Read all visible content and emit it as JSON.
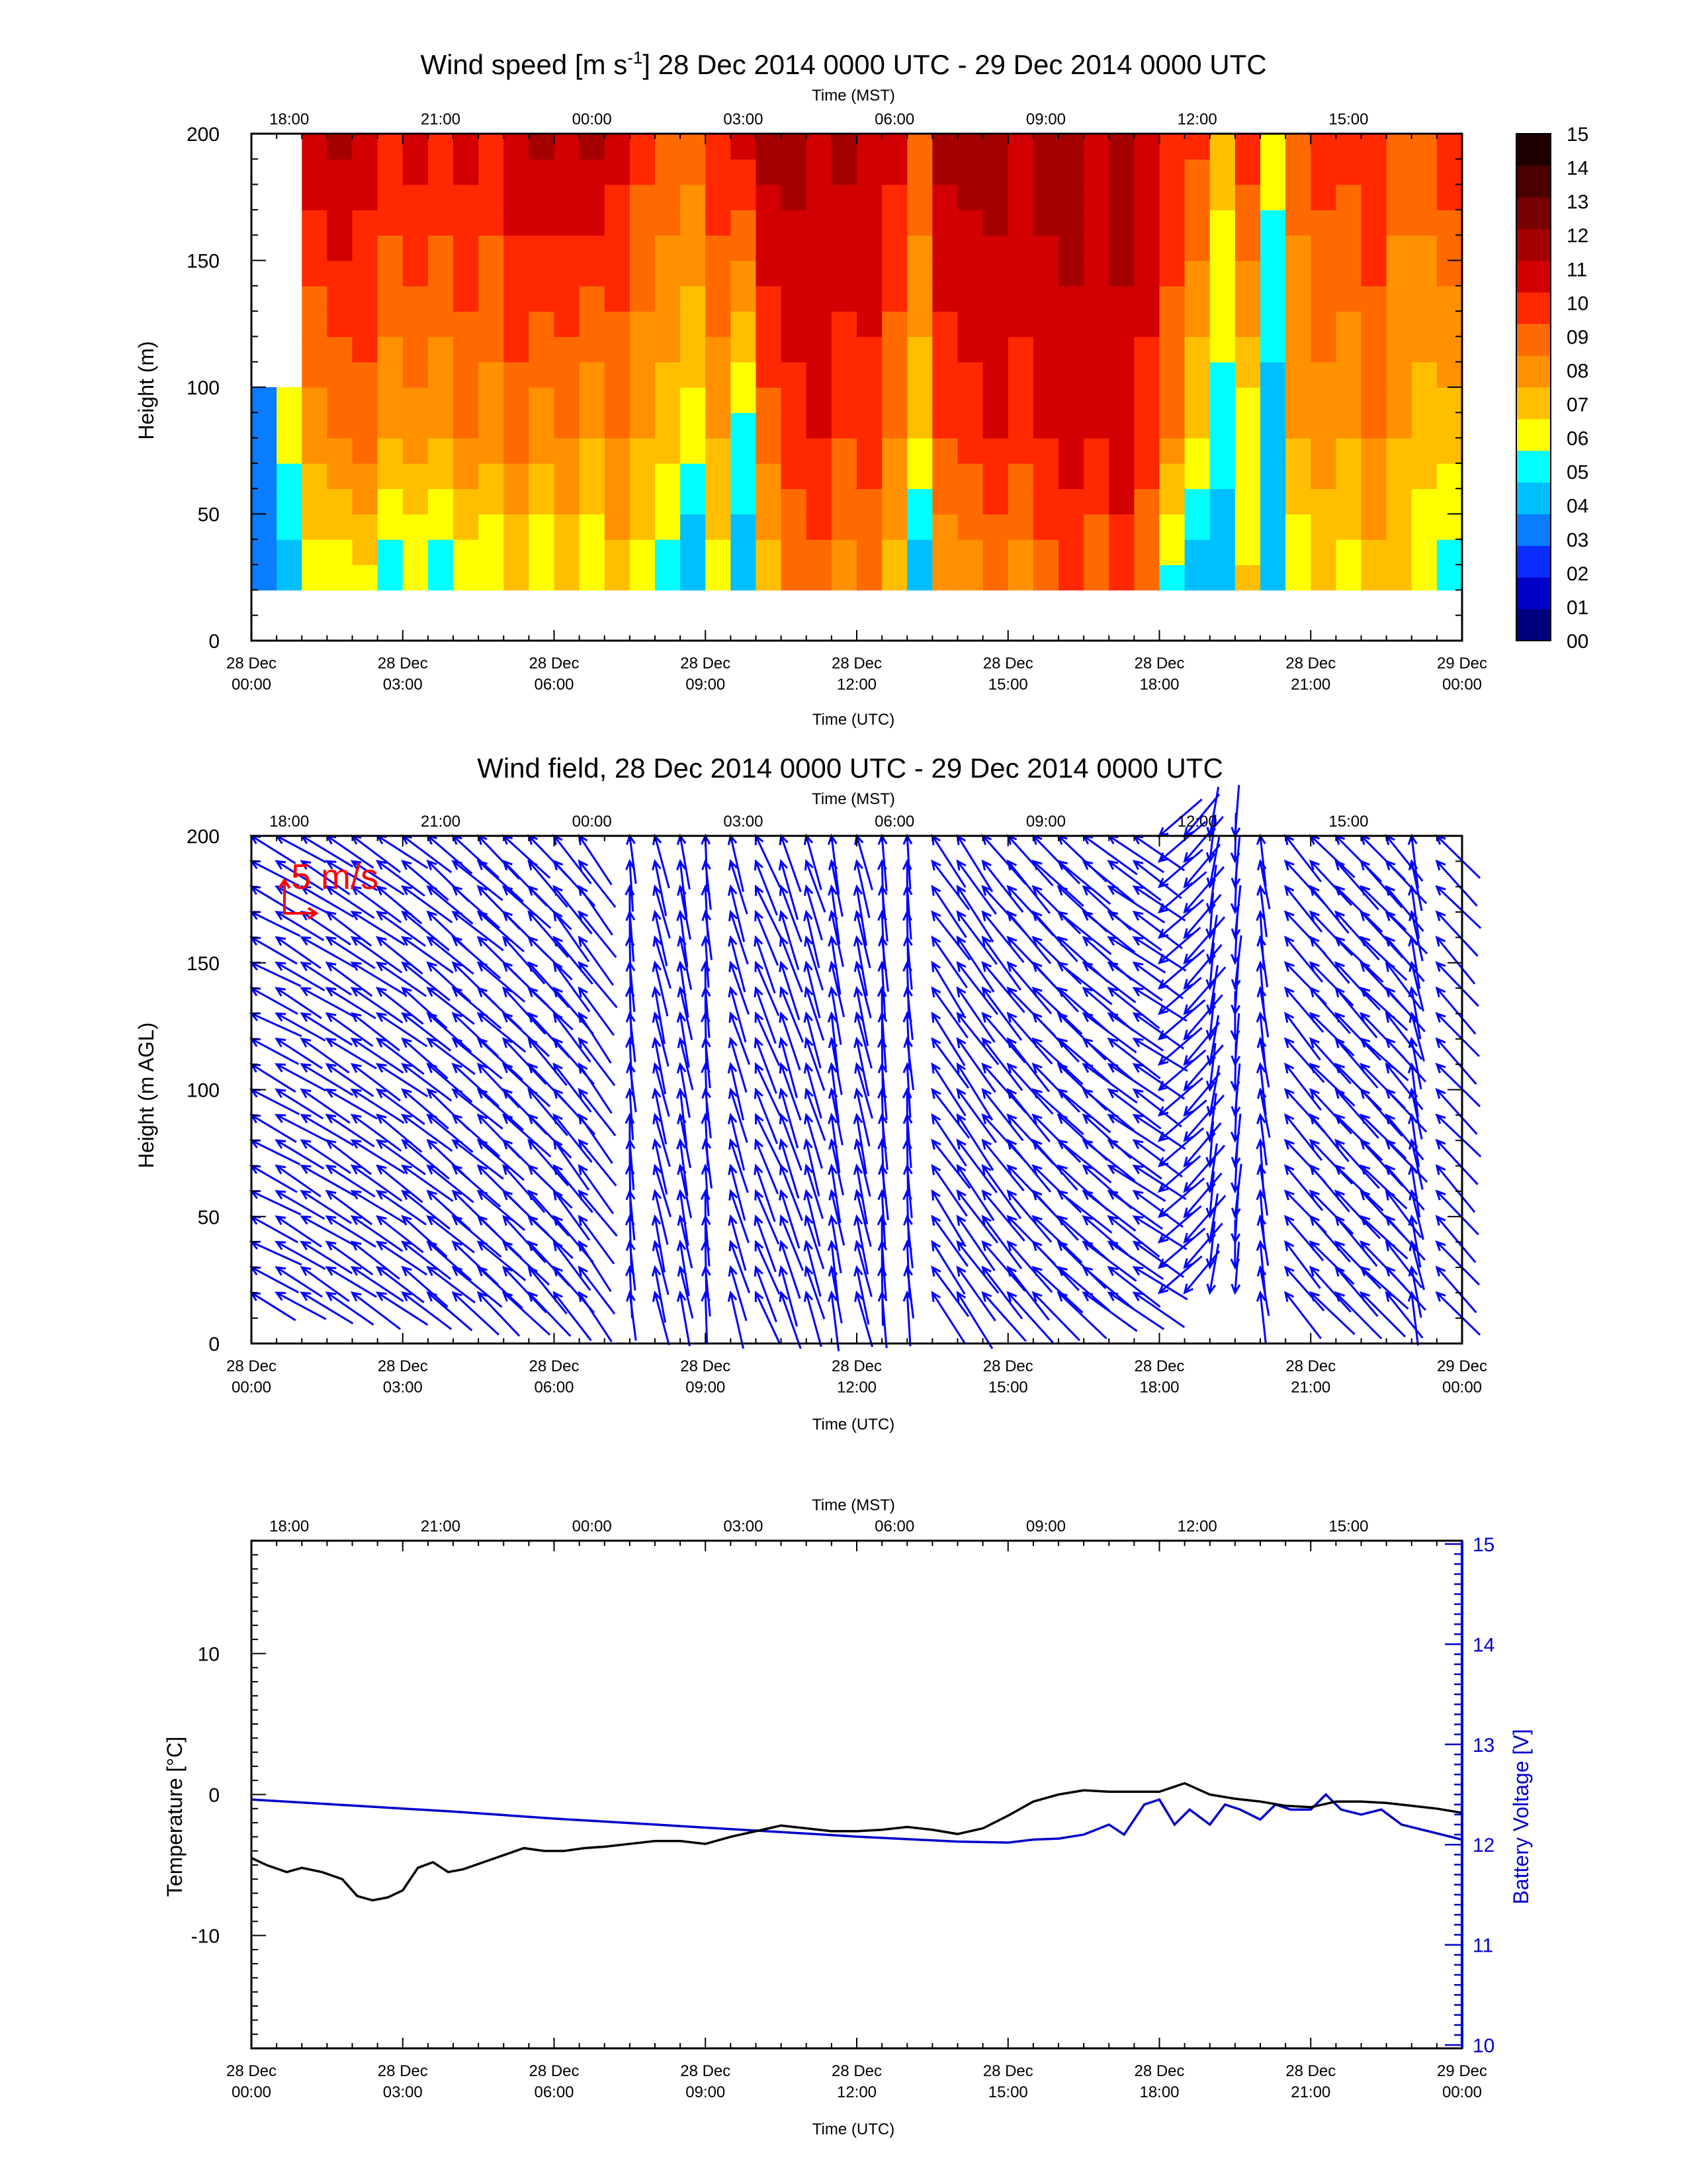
{
  "chart_data": [
    {
      "type": "heatmap",
      "title": "Wind speed [m s",
      "title_sup": "-1",
      "title_rest": "] 28 Dec 2014 0000 UTC - 29 Dec 2014 0000 UTC",
      "xlabel": "Time (UTC)",
      "x2label": "Time (MST)",
      "ylabel": "Height (m)",
      "ylim": [
        0,
        200
      ],
      "yticks": [
        "0",
        "50",
        "100",
        "150",
        "200"
      ],
      "xticks_utc": [
        [
          "28 Dec",
          "00:00"
        ],
        [
          "28 Dec",
          "03:00"
        ],
        [
          "28 Dec",
          "06:00"
        ],
        [
          "28 Dec",
          "09:00"
        ],
        [
          "28 Dec",
          "12:00"
        ],
        [
          "28 Dec",
          "15:00"
        ],
        [
          "28 Dec",
          "18:00"
        ],
        [
          "28 Dec",
          "21:00"
        ],
        [
          "29 Dec",
          "00:00"
        ]
      ],
      "xticks_mst": [
        "18:00",
        "21:00",
        "00:00",
        "03:00",
        "06:00",
        "09:00",
        "12:00",
        "15:00"
      ],
      "colorbar": {
        "labels": [
          "00",
          "01",
          "02",
          "03",
          "04",
          "05",
          "06",
          "07",
          "08",
          "09",
          "10",
          "11",
          "12",
          "13",
          "14",
          "15"
        ],
        "colors": [
          "#00007f",
          "#0000c8",
          "#0a2cff",
          "#0a7cff",
          "#00bfff",
          "#00ffff",
          "#ffff00",
          "#ffbf00",
          "#ff9100",
          "#ff6a00",
          "#ff2800",
          "#d20000",
          "#a50000",
          "#780000",
          "#4b0000",
          "#1e0000"
        ]
      },
      "columns": [
        {
          "t": 0.0,
          "low": 3.5,
          "mid": 3.5,
          "high": null
        },
        {
          "t": 0.5,
          "low": 4.5,
          "mid": 6.5,
          "high": null
        },
        {
          "t": 1.0,
          "low": 6.5,
          "mid": 8.5,
          "high": 12.0
        },
        {
          "t": 1.5,
          "low": 6.0,
          "mid": 9.0,
          "high": 12.5
        },
        {
          "t": 2.0,
          "low": 6.5,
          "mid": 9.5,
          "high": 11.5
        },
        {
          "t": 2.5,
          "low": 5.5,
          "mid": 8.0,
          "high": 11.0
        },
        {
          "t": 3.0,
          "low": 6.0,
          "mid": 8.5,
          "high": 11.5
        },
        {
          "t": 3.5,
          "low": 5.0,
          "mid": 8.0,
          "high": 11.0
        },
        {
          "t": 4.0,
          "low": 6.5,
          "mid": 9.0,
          "high": 11.5
        },
        {
          "t": 4.5,
          "low": 6.0,
          "mid": 8.5,
          "high": 11.0
        },
        {
          "t": 5.0,
          "low": 7.0,
          "mid": 9.5,
          "high": 12.0
        },
        {
          "t": 5.5,
          "low": 6.0,
          "mid": 8.5,
          "high": 12.5
        },
        {
          "t": 6.0,
          "low": 7.0,
          "mid": 9.0,
          "high": 12.0
        },
        {
          "t": 6.5,
          "low": 6.0,
          "mid": 8.0,
          "high": 12.5
        },
        {
          "t": 7.0,
          "low": 7.5,
          "mid": 9.0,
          "high": 11.5
        },
        {
          "t": 7.5,
          "low": 6.5,
          "mid": 8.0,
          "high": 10.5
        },
        {
          "t": 8.0,
          "low": 5.5,
          "mid": 7.5,
          "high": 10.0
        },
        {
          "t": 8.5,
          "low": 4.0,
          "mid": 6.5,
          "high": 9.5
        },
        {
          "t": 9.0,
          "low": 6.5,
          "mid": 8.0,
          "high": 11.0
        },
        {
          "t": 9.5,
          "low": 4.5,
          "mid": 5.5,
          "high": 11.5
        },
        {
          "t": 10.0,
          "low": 7.5,
          "mid": 9.5,
          "high": 12.5
        },
        {
          "t": 10.5,
          "low": 9.0,
          "mid": 10.5,
          "high": 12.5
        },
        {
          "t": 11.0,
          "low": 9.5,
          "mid": 11.0,
          "high": 12.0
        },
        {
          "t": 11.5,
          "low": 8.5,
          "mid": 10.0,
          "high": 12.5
        },
        {
          "t": 12.0,
          "low": 9.0,
          "mid": 10.5,
          "high": 12.0
        },
        {
          "t": 12.5,
          "low": 7.5,
          "mid": 9.0,
          "high": 11.5
        },
        {
          "t": 13.0,
          "low": 4.5,
          "mid": 7.0,
          "high": 10.0
        },
        {
          "t": 13.5,
          "low": 8.0,
          "mid": 10.0,
          "high": 12.5
        },
        {
          "t": 14.0,
          "low": 8.5,
          "mid": 10.5,
          "high": 12.5
        },
        {
          "t": 14.5,
          "low": 9.0,
          "mid": 11.0,
          "high": 12.5
        },
        {
          "t": 15.0,
          "low": 8.5,
          "mid": 10.5,
          "high": 12.0
        },
        {
          "t": 15.5,
          "low": 9.5,
          "mid": 11.0,
          "high": 12.5
        },
        {
          "t": 16.0,
          "low": 10.0,
          "mid": 11.5,
          "high": 12.5
        },
        {
          "t": 16.5,
          "low": 9.0,
          "mid": 11.0,
          "high": 12.0
        },
        {
          "t": 17.0,
          "low": 10.5,
          "mid": 11.5,
          "high": 12.5
        },
        {
          "t": 17.5,
          "low": 9.0,
          "mid": 10.5,
          "high": 12.0
        },
        {
          "t": 18.0,
          "low": 5.5,
          "mid": 9.0,
          "high": 11.0
        },
        {
          "t": 18.5,
          "low": 4.5,
          "mid": 7.0,
          "high": 10.5
        },
        {
          "t": 19.0,
          "low": 4.0,
          "mid": 5.5,
          "high": 7.5
        },
        {
          "t": 19.5,
          "low": 7.0,
          "mid": 6.5,
          "high": 11.0
        },
        {
          "t": 20.0,
          "low": 4.5,
          "mid": 4.5,
          "high": 6.5
        },
        {
          "t": 20.5,
          "low": 6.0,
          "mid": 8.0,
          "high": 9.5
        },
        {
          "t": 21.0,
          "low": 7.0,
          "mid": 8.5,
          "high": 10.5
        },
        {
          "t": 21.5,
          "low": 6.5,
          "mid": 8.0,
          "high": 10.5
        },
        {
          "t": 22.0,
          "low": 7.5,
          "mid": 9.0,
          "high": 11.0
        },
        {
          "t": 22.5,
          "low": 7.0,
          "mid": 8.0,
          "high": 9.5
        },
        {
          "t": 23.0,
          "low": 6.0,
          "mid": 7.5,
          "high": 10.0
        },
        {
          "t": 23.5,
          "low": 5.5,
          "mid": 7.5,
          "high": 11.0
        },
        {
          "t": 24.0,
          "low": 7.5,
          "mid": 8.5,
          "high": 11.5
        }
      ]
    },
    {
      "type": "scatter",
      "title": "Wind field, 28 Dec 2014 0000 UTC - 29 Dec 2014 0000 UTC",
      "xlabel": "Time (UTC)",
      "x2label": "Time (MST)",
      "ylabel": "Height (m AGL)",
      "ylim": [
        0,
        200
      ],
      "yticks": [
        "0",
        "50",
        "100",
        "150",
        "200"
      ],
      "xticks_utc": [
        [
          "28 Dec",
          "00:00"
        ],
        [
          "28 Dec",
          "03:00"
        ],
        [
          "28 Dec",
          "06:00"
        ],
        [
          "28 Dec",
          "09:00"
        ],
        [
          "28 Dec",
          "12:00"
        ],
        [
          "28 Dec",
          "15:00"
        ],
        [
          "28 Dec",
          "18:00"
        ],
        [
          "28 Dec",
          "21:00"
        ],
        [
          "29 Dec",
          "00:00"
        ]
      ],
      "xticks_mst": [
        "18:00",
        "21:00",
        "00:00",
        "03:00",
        "06:00",
        "09:00",
        "12:00",
        "15:00"
      ],
      "scale_label": "5 m/s",
      "scale_color": "#ff0000",
      "arrow_color": "#0000ff",
      "heights": [
        20,
        30,
        40,
        50,
        60,
        70,
        80,
        90,
        100,
        110,
        120,
        130,
        140,
        150,
        160,
        170,
        180,
        190,
        200
      ],
      "columns": [
        {
          "t": 0.0,
          "u": 7.5,
          "v": -4.0
        },
        {
          "t": 0.5,
          "u": 7.5,
          "v": -4.5
        },
        {
          "t": 1.0,
          "u": 8.0,
          "v": -5.0
        },
        {
          "t": 1.5,
          "u": 7.5,
          "v": -5.0
        },
        {
          "t": 2.0,
          "u": 8.0,
          "v": -5.5
        },
        {
          "t": 2.5,
          "u": 7.5,
          "v": -5.5
        },
        {
          "t": 3.0,
          "u": 7.5,
          "v": -6.0
        },
        {
          "t": 3.5,
          "u": 7.0,
          "v": -6.0
        },
        {
          "t": 4.0,
          "u": 7.5,
          "v": -6.5
        },
        {
          "t": 4.5,
          "u": 7.0,
          "v": -6.5
        },
        {
          "t": 5.0,
          "u": 7.0,
          "v": -7.0
        },
        {
          "t": 5.5,
          "u": 6.5,
          "v": -7.0
        },
        {
          "t": 6.0,
          "u": 6.0,
          "v": -7.5
        },
        {
          "t": 6.5,
          "u": 5.5,
          "v": -7.5
        },
        {
          "t": 7.5,
          "u": 0.5,
          "v": -8.0
        },
        {
          "t": 8.0,
          "u": 2.0,
          "v": -8.5
        },
        {
          "t": 8.5,
          "u": 1.5,
          "v": -8.5
        },
        {
          "t": 9.0,
          "u": 0.5,
          "v": -8.0
        },
        {
          "t": 9.5,
          "u": 2.5,
          "v": -8.5
        },
        {
          "t": 10.0,
          "u": 3.5,
          "v": -8.5
        },
        {
          "t": 10.5,
          "u": 3.0,
          "v": -9.0
        },
        {
          "t": 11.0,
          "u": 2.5,
          "v": -8.5
        },
        {
          "t": 11.5,
          "u": 1.5,
          "v": -9.0
        },
        {
          "t": 12.0,
          "u": 2.0,
          "v": -9.0
        },
        {
          "t": 12.5,
          "u": 0.5,
          "v": -9.0
        },
        {
          "t": 13.0,
          "u": 0.5,
          "v": -8.5
        },
        {
          "t": 13.5,
          "u": 5.5,
          "v": -8.0
        },
        {
          "t": 14.0,
          "u": 6.0,
          "v": -8.5
        },
        {
          "t": 14.5,
          "u": 6.5,
          "v": -8.0
        },
        {
          "t": 15.0,
          "u": 7.0,
          "v": -8.0
        },
        {
          "t": 15.5,
          "u": 7.5,
          "v": -7.5
        },
        {
          "t": 16.0,
          "u": 8.0,
          "v": -7.0
        },
        {
          "t": 16.5,
          "u": 8.0,
          "v": -6.5
        },
        {
          "t": 17.0,
          "u": 8.5,
          "v": -6.0
        },
        {
          "t": 17.5,
          "u": 8.0,
          "v": -5.5
        },
        {
          "t": 18.0,
          "u": 7.0,
          "v": 6.0
        },
        {
          "t": 18.5,
          "u": 6.0,
          "v": 7.0
        },
        {
          "t": 19.0,
          "u": 1.0,
          "v": 7.5
        },
        {
          "t": 19.5,
          "u": 0.5,
          "v": 8.0
        },
        {
          "t": 20.0,
          "u": 1.0,
          "v": -8.0
        },
        {
          "t": 20.5,
          "u": 6.0,
          "v": -7.0
        },
        {
          "t": 21.0,
          "u": 6.5,
          "v": -7.0
        },
        {
          "t": 21.5,
          "u": 7.0,
          "v": -7.5
        },
        {
          "t": 22.0,
          "u": 7.0,
          "v": -7.0
        },
        {
          "t": 22.5,
          "u": 6.0,
          "v": -7.0
        },
        {
          "t": 23.0,
          "u": 1.5,
          "v": -8.0
        },
        {
          "t": 23.5,
          "u": 6.5,
          "v": -7.0
        }
      ]
    },
    {
      "type": "line",
      "xlabel": "Time (UTC)",
      "x2label": "Time (MST)",
      "ylabel": "Temperature [°C]",
      "y2label": "Battery Voltage [V]",
      "ylim": [
        -18,
        18
      ],
      "y2lim": [
        10,
        15
      ],
      "yticks": [
        "-10",
        "0",
        "10"
      ],
      "y2ticks": [
        "10",
        "11",
        "12",
        "13",
        "14",
        "15"
      ],
      "xticks_utc": [
        [
          "28 Dec",
          "00:00"
        ],
        [
          "28 Dec",
          "03:00"
        ],
        [
          "28 Dec",
          "06:00"
        ],
        [
          "28 Dec",
          "09:00"
        ],
        [
          "28 Dec",
          "12:00"
        ],
        [
          "28 Dec",
          "15:00"
        ],
        [
          "28 Dec",
          "18:00"
        ],
        [
          "28 Dec",
          "21:00"
        ],
        [
          "29 Dec",
          "00:00"
        ]
      ],
      "xticks_mst": [
        "18:00",
        "21:00",
        "00:00",
        "03:00",
        "06:00",
        "09:00",
        "12:00",
        "15:00"
      ],
      "series": [
        {
          "name": "Temperature [°C]",
          "color": "#000000",
          "x": [
            0.0,
            0.3,
            0.7,
            1.0,
            1.4,
            1.8,
            2.1,
            2.4,
            2.7,
            3.0,
            3.3,
            3.6,
            3.9,
            4.2,
            4.6,
            5.0,
            5.4,
            5.8,
            6.2,
            6.6,
            7.0,
            7.5,
            8.0,
            8.5,
            9.0,
            9.5,
            10.0,
            10.5,
            11.0,
            11.5,
            12.0,
            12.5,
            13.0,
            13.5,
            14.0,
            14.5,
            15.0,
            15.5,
            16.0,
            16.5,
            17.0,
            17.5,
            18.0,
            18.5,
            19.0,
            19.5,
            20.0,
            20.5,
            21.0,
            21.5,
            22.0,
            22.5,
            23.0,
            23.5,
            24.0
          ],
          "y": [
            -4.5,
            -5.0,
            -5.5,
            -5.2,
            -5.5,
            -6.0,
            -7.2,
            -7.5,
            -7.3,
            -6.8,
            -5.2,
            -4.8,
            -5.5,
            -5.3,
            -4.8,
            -4.3,
            -3.8,
            -4.0,
            -4.0,
            -3.8,
            -3.7,
            -3.5,
            -3.3,
            -3.3,
            -3.5,
            -3.0,
            -2.6,
            -2.2,
            -2.4,
            -2.6,
            -2.6,
            -2.5,
            -2.3,
            -2.5,
            -2.8,
            -2.4,
            -1.5,
            -0.5,
            0.0,
            0.3,
            0.2,
            0.2,
            0.2,
            0.8,
            0.0,
            -0.3,
            -0.5,
            -0.8,
            -0.9,
            -0.5,
            -0.5,
            -0.6,
            -0.8,
            -1.0,
            -1.3
          ]
        },
        {
          "name": "Battery Voltage [V]",
          "color": "#0000cc",
          "x": [
            0.0,
            2.0,
            4.0,
            6.0,
            8.0,
            10.0,
            12.0,
            14.0,
            15.0,
            15.5,
            16.0,
            16.5,
            17.0,
            17.3,
            17.7,
            18.0,
            18.3,
            18.6,
            19.0,
            19.3,
            19.6,
            20.0,
            20.3,
            20.6,
            21.0,
            21.3,
            21.6,
            22.0,
            22.4,
            22.8,
            23.2,
            23.6,
            24.0
          ],
          "y": [
            12.45,
            12.39,
            12.33,
            12.26,
            12.2,
            12.14,
            12.08,
            12.03,
            12.02,
            12.05,
            12.06,
            12.1,
            12.2,
            12.1,
            12.4,
            12.45,
            12.2,
            12.35,
            12.2,
            12.4,
            12.35,
            12.25,
            12.4,
            12.35,
            12.35,
            12.5,
            12.35,
            12.3,
            12.35,
            12.2,
            12.15,
            12.1,
            12.05
          ]
        }
      ]
    }
  ]
}
